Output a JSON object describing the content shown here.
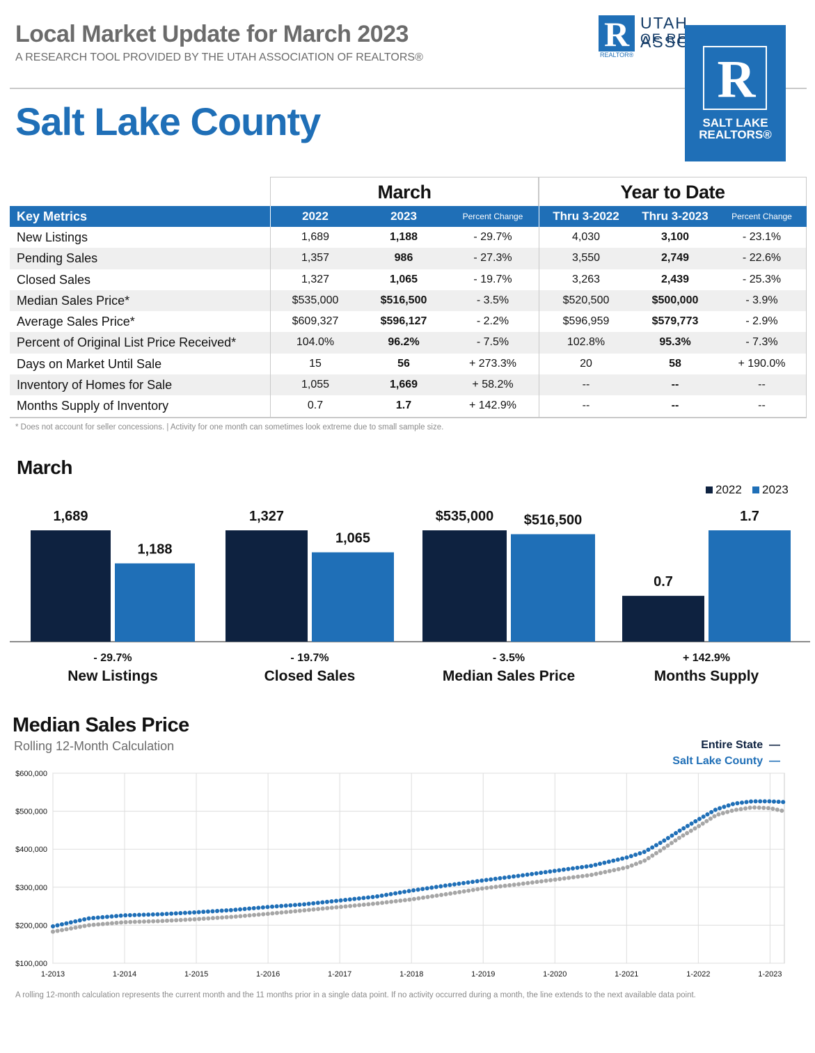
{
  "header": {
    "title": "Local Market Update for March 2023",
    "subtitle": "A RESEARCH TOOL PROVIDED BY THE UTAH ASSOCIATION OF REALTORS®",
    "county": "Salt Lake County"
  },
  "logos": {
    "ua_letter": "R",
    "ua_realtor": "REALTOR®",
    "ua_line1": "UTAH ASSOCIATION",
    "ua_line2": "OF RE",
    "slr_letter": "R",
    "slr_line1": "SALT LAKE",
    "slr_line2": "REALTORS®"
  },
  "metrics_table": {
    "group_march": "March",
    "group_ytd": "Year to Date",
    "headers": [
      "Key Metrics",
      "2022",
      "2023",
      "Percent Change",
      "Thru 3-2022",
      "Thru 3-2023",
      "Percent Change"
    ],
    "rows": [
      {
        "label": "New Listings",
        "m2022": "1,689",
        "m2023": "1,188",
        "mpct": "- 29.7%",
        "y2022": "4,030",
        "y2023": "3,100",
        "ypct": "- 23.1%"
      },
      {
        "label": "Pending Sales",
        "m2022": "1,357",
        "m2023": "986",
        "mpct": "- 27.3%",
        "y2022": "3,550",
        "y2023": "2,749",
        "ypct": "- 22.6%"
      },
      {
        "label": "Closed Sales",
        "m2022": "1,327",
        "m2023": "1,065",
        "mpct": "- 19.7%",
        "y2022": "3,263",
        "y2023": "2,439",
        "ypct": "- 25.3%"
      },
      {
        "label": "Median Sales Price*",
        "m2022": "$535,000",
        "m2023": "$516,500",
        "mpct": "- 3.5%",
        "y2022": "$520,500",
        "y2023": "$500,000",
        "ypct": "- 3.9%"
      },
      {
        "label": "Average Sales Price*",
        "m2022": "$609,327",
        "m2023": "$596,127",
        "mpct": "- 2.2%",
        "y2022": "$596,959",
        "y2023": "$579,773",
        "ypct": "- 2.9%"
      },
      {
        "label": "Percent of Original List Price Received*",
        "m2022": "104.0%",
        "m2023": "96.2%",
        "mpct": "- 7.5%",
        "y2022": "102.8%",
        "y2023": "95.3%",
        "ypct": "- 7.3%"
      },
      {
        "label": "Days on Market Until Sale",
        "m2022": "15",
        "m2023": "56",
        "mpct": "+ 273.3%",
        "y2022": "20",
        "y2023": "58",
        "ypct": "+ 190.0%"
      },
      {
        "label": "Inventory of Homes for Sale",
        "m2022": "1,055",
        "m2023": "1,669",
        "mpct": "+ 58.2%",
        "y2022": "--",
        "y2023": "--",
        "ypct": "--"
      },
      {
        "label": "Months Supply of Inventory",
        "m2022": "0.7",
        "m2023": "1.7",
        "mpct": "+ 142.9%",
        "y2022": "--",
        "y2023": "--",
        "ypct": "--"
      }
    ],
    "footnote": "* Does not account for seller concessions.  |  Activity for one month can sometimes look extreme due to small sample size."
  },
  "colors": {
    "accent": "#1f6fb7",
    "navy": "#0e2240",
    "gray_line": "#a6a6a6",
    "state_line": "#1f6fb7"
  },
  "chart_data": [
    {
      "type": "bar",
      "title": "March",
      "legend": [
        "2022",
        "2023"
      ],
      "groups": [
        {
          "name": "New Listings",
          "change": "- 29.7%",
          "values": [
            1689,
            1188
          ],
          "labels": [
            "1,689",
            "1,188"
          ]
        },
        {
          "name": "Closed Sales",
          "change": "- 19.7%",
          "values": [
            1327,
            1065
          ],
          "labels": [
            "1,327",
            "1,065"
          ]
        },
        {
          "name": "Median Sales Price",
          "change": "- 3.5%",
          "values": [
            535000,
            516500
          ],
          "labels": [
            "$535,000",
            "$516,500"
          ]
        },
        {
          "name": "Months Supply",
          "change": "+ 142.9%",
          "values": [
            0.7,
            1.7
          ],
          "labels": [
            "0.7",
            "1.7"
          ]
        }
      ]
    },
    {
      "type": "line",
      "title": "Median Sales Price",
      "subtitle": "Rolling 12-Month Calculation",
      "ylim": [
        100000,
        600000
      ],
      "y_ticks": [
        100000,
        200000,
        300000,
        400000,
        500000,
        600000
      ],
      "y_tick_labels": [
        "$100,000",
        "$200,000",
        "$300,000",
        "$400,000",
        "$500,000",
        "$600,000"
      ],
      "x_tick_labels": [
        "1-2013",
        "1-2014",
        "1-2015",
        "1-2016",
        "1-2017",
        "1-2018",
        "1-2019",
        "1-2020",
        "1-2021",
        "1-2022",
        "1-2023"
      ],
      "x_range_years": [
        2013.0,
        2023.2
      ],
      "series": [
        {
          "name": "Entire State",
          "x": [
            2013.0,
            2013.5,
            2014.0,
            2014.5,
            2015.0,
            2015.5,
            2016.0,
            2016.5,
            2017.0,
            2017.5,
            2018.0,
            2018.5,
            2019.0,
            2019.5,
            2020.0,
            2020.5,
            2021.0,
            2021.25,
            2021.5,
            2021.75,
            2022.0,
            2022.25,
            2022.5,
            2022.75,
            2023.0,
            2023.2
          ],
          "y": [
            197000,
            218000,
            226000,
            229000,
            234000,
            240000,
            248000,
            255000,
            265000,
            275000,
            291000,
            305000,
            318000,
            330000,
            343000,
            356000,
            378000,
            393000,
            420000,
            450000,
            478000,
            505000,
            520000,
            526000,
            526000,
            524000
          ]
        },
        {
          "name": "Salt Lake County",
          "x": [
            2013.0,
            2013.5,
            2014.0,
            2014.5,
            2015.0,
            2015.5,
            2016.0,
            2016.5,
            2017.0,
            2017.5,
            2018.0,
            2018.5,
            2019.0,
            2019.5,
            2020.0,
            2020.5,
            2021.0,
            2021.25,
            2021.5,
            2021.75,
            2022.0,
            2022.25,
            2022.5,
            2022.75,
            2023.0,
            2023.2
          ],
          "y": [
            183000,
            200000,
            208000,
            211000,
            216000,
            222000,
            230000,
            239000,
            248000,
            257000,
            268000,
            282000,
            297000,
            308000,
            320000,
            332000,
            352000,
            370000,
            400000,
            432000,
            460000,
            490000,
            503000,
            510000,
            508000,
            500000
          ]
        }
      ],
      "note": "A rolling 12-month calculation represents the current month and the 11 months prior in a single data point. If no activity occurred during a month, the line extends to the next available data point."
    }
  ]
}
